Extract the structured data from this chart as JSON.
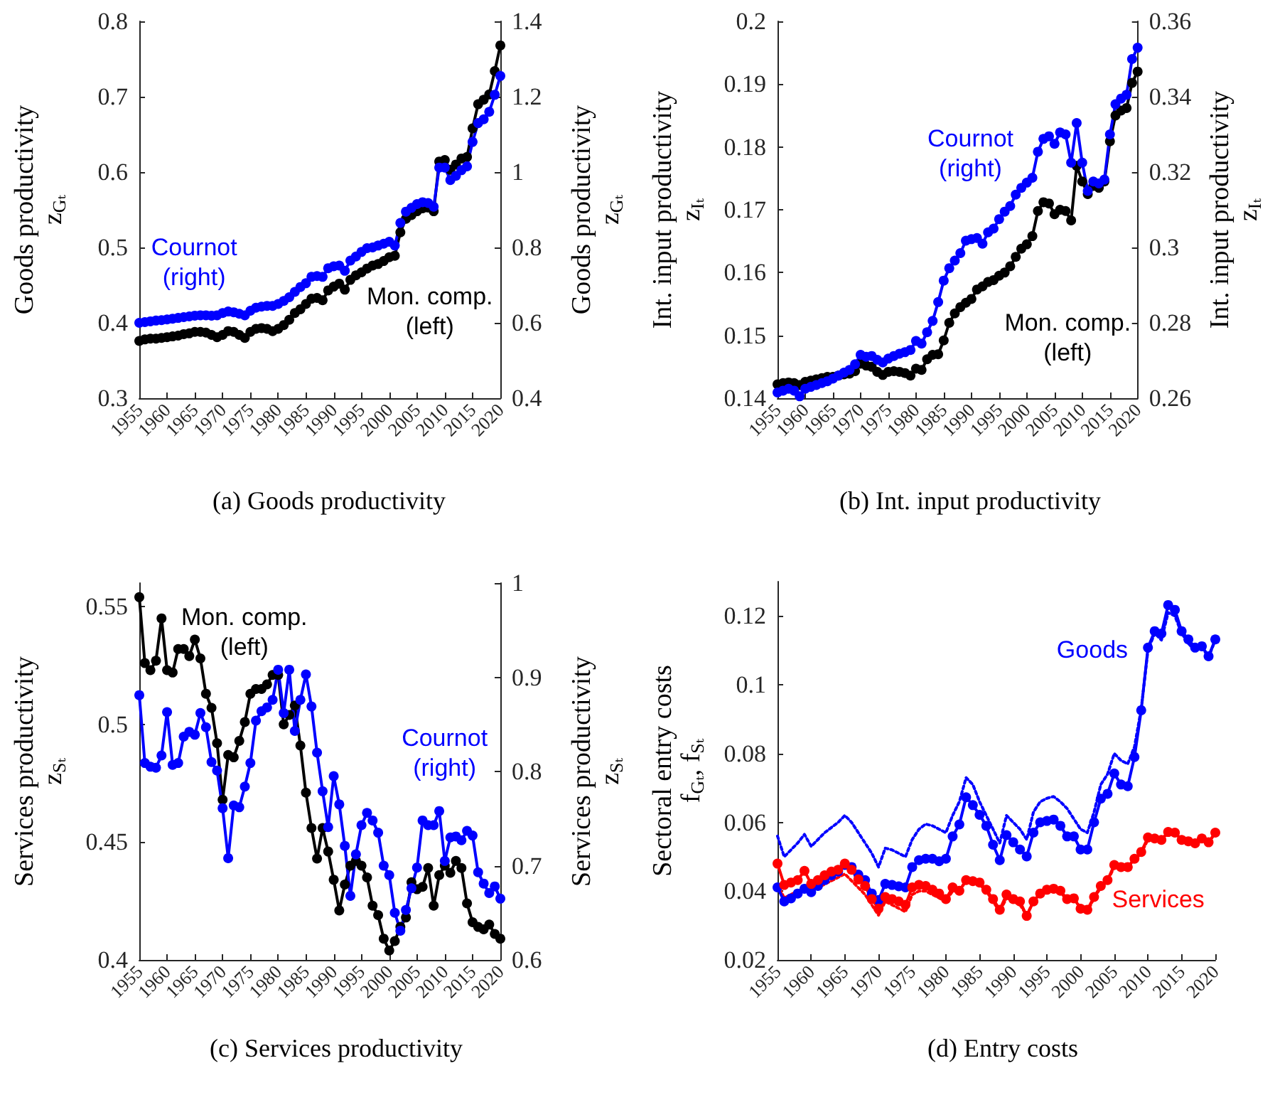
{
  "chart_data": [
    {
      "type": "line",
      "title": "(a) Goods productivity",
      "ylabel": "Goods productivity\nz$_{Gₜ}$",
      "y2label": "Goods productivity\nz$_{Gₜ}$",
      "marker": "circle",
      "line_style": "solid",
      "x": [
        1955,
        1956,
        1957,
        1958,
        1959,
        1960,
        1961,
        1962,
        1963,
        1964,
        1965,
        1966,
        1967,
        1968,
        1969,
        1970,
        1971,
        1972,
        1973,
        1974,
        1975,
        1976,
        1977,
        1978,
        1979,
        1980,
        1981,
        1982,
        1983,
        1984,
        1985,
        1986,
        1987,
        1988,
        1989,
        1990,
        1991,
        1992,
        1993,
        1994,
        1995,
        1996,
        1997,
        1998,
        1999,
        2000,
        2001,
        2002,
        2003,
        2004,
        2005,
        2006,
        2007,
        2008,
        2009,
        2010,
        2011,
        2012,
        2013,
        2014,
        2015,
        2016,
        2017,
        2018,
        2019,
        2020
      ],
      "xlim": [
        1955,
        2020
      ],
      "xticks": [
        1955,
        1960,
        1965,
        1970,
        1975,
        1980,
        1985,
        1990,
        1995,
        2000,
        2005,
        2010,
        2015,
        2020
      ],
      "ylim": [
        0.3,
        0.8
      ],
      "yticks": [
        0.3,
        0.4,
        0.5,
        0.6,
        0.7,
        0.8
      ],
      "y2lim": [
        0.4,
        1.4
      ],
      "y2ticks": [
        0.4,
        0.6,
        0.8,
        1,
        1.2,
        1.4
      ],
      "series": [
        {
          "name": "Mon. comp.\n(left)",
          "color": "#000000",
          "values": [
            0.376,
            0.378,
            0.379,
            0.379,
            0.38,
            0.381,
            0.382,
            0.383,
            0.385,
            0.386,
            0.388,
            0.388,
            0.387,
            0.384,
            0.381,
            0.384,
            0.389,
            0.388,
            0.384,
            0.38,
            0.388,
            0.392,
            0.393,
            0.392,
            0.389,
            0.392,
            0.397,
            0.404,
            0.413,
            0.418,
            0.425,
            0.432,
            0.433,
            0.43,
            0.443,
            0.448,
            0.452,
            0.444,
            0.457,
            0.463,
            0.467,
            0.472,
            0.476,
            0.478,
            0.482,
            0.487,
            0.489,
            0.52,
            0.538,
            0.543,
            0.548,
            0.552,
            0.553,
            0.548,
            0.614,
            0.616,
            0.603,
            0.61,
            0.618,
            0.62,
            0.658,
            0.69,
            0.696,
            0.703,
            0.734,
            0.768
          ]
        },
        {
          "name": "Cournot\n(right)",
          "color": "#0000ff",
          "axis": "y2",
          "values": [
            0.6,
            0.602,
            0.604,
            0.606,
            0.607,
            0.609,
            0.611,
            0.613,
            0.615,
            0.617,
            0.619,
            0.62,
            0.62,
            0.619,
            0.62,
            0.626,
            0.63,
            0.628,
            0.624,
            0.62,
            0.632,
            0.64,
            0.643,
            0.645,
            0.645,
            0.65,
            0.658,
            0.668,
            0.682,
            0.695,
            0.705,
            0.722,
            0.724,
            0.722,
            0.745,
            0.75,
            0.752,
            0.738,
            0.765,
            0.776,
            0.788,
            0.798,
            0.8,
            0.805,
            0.81,
            0.815,
            0.805,
            0.865,
            0.895,
            0.905,
            0.915,
            0.92,
            0.918,
            0.908,
            1.012,
            1.012,
            0.979,
            0.99,
            1.005,
            1.015,
            1.08,
            1.13,
            1.14,
            1.16,
            1.205,
            1.255
          ]
        }
      ]
    },
    {
      "type": "line",
      "title": "(b) Int. input productivity",
      "ylabel": "Int. input productivity\nz$_{Iₜ}$",
      "y2label": "Int. input productivity\nz$_{Iₜ}$",
      "marker": "circle",
      "line_style": "solid",
      "x": [
        1955,
        1956,
        1957,
        1958,
        1959,
        1960,
        1961,
        1962,
        1963,
        1964,
        1965,
        1966,
        1967,
        1968,
        1969,
        1970,
        1971,
        1972,
        1973,
        1974,
        1975,
        1976,
        1977,
        1978,
        1979,
        1980,
        1981,
        1982,
        1983,
        1984,
        1985,
        1986,
        1987,
        1988,
        1989,
        1990,
        1991,
        1992,
        1993,
        1994,
        1995,
        1996,
        1997,
        1998,
        1999,
        2000,
        2001,
        2002,
        2003,
        2004,
        2005,
        2006,
        2007,
        2008,
        2009,
        2010,
        2011,
        2012,
        2013,
        2014,
        2015,
        2016,
        2017,
        2018,
        2019,
        2020
      ],
      "xlim": [
        1955,
        2020
      ],
      "xticks": [
        1955,
        1960,
        1965,
        1970,
        1975,
        1980,
        1985,
        1990,
        1995,
        2000,
        2005,
        2010,
        2015,
        2020
      ],
      "ylim": [
        0.14,
        0.2
      ],
      "yticks": [
        0.14,
        0.15,
        0.16,
        0.17,
        0.18,
        0.19,
        0.2
      ],
      "y2lim": [
        0.26,
        0.36
      ],
      "y2ticks": [
        0.26,
        0.28,
        0.3,
        0.32,
        0.34,
        0.36
      ],
      "series": [
        {
          "name": "Mon. comp.\n(left)",
          "color": "#000000",
          "values": [
            0.1422,
            0.1424,
            0.1425,
            0.1424,
            0.1421,
            0.1426,
            0.1428,
            0.143,
            0.1432,
            0.1434,
            0.1434,
            0.1436,
            0.1438,
            0.1439,
            0.1443,
            0.1455,
            0.1452,
            0.145,
            0.1442,
            0.1437,
            0.1442,
            0.1443,
            0.1442,
            0.144,
            0.1436,
            0.1447,
            0.1445,
            0.1462,
            0.1469,
            0.147,
            0.1492,
            0.152,
            0.1535,
            0.1545,
            0.1552,
            0.1558,
            0.1573,
            0.1578,
            0.1585,
            0.1588,
            0.1595,
            0.16,
            0.161,
            0.1625,
            0.1638,
            0.1645,
            0.1658,
            0.1698,
            0.1712,
            0.171,
            0.1693,
            0.17,
            0.1698,
            0.1683,
            0.177,
            0.1745,
            0.1725,
            0.1738,
            0.1735,
            0.1745,
            0.1809,
            0.185,
            0.1858,
            0.1862,
            0.1902,
            0.192
          ]
        },
        {
          "name": "Cournot\n(right)",
          "color": "#0000ff",
          "axis": "y2",
          "values": [
            0.2615,
            0.262,
            0.2625,
            0.262,
            0.2605,
            0.2625,
            0.263,
            0.2635,
            0.264,
            0.2645,
            0.2652,
            0.266,
            0.2668,
            0.2675,
            0.269,
            0.2715,
            0.271,
            0.2712,
            0.2702,
            0.2695,
            0.2705,
            0.2712,
            0.2718,
            0.2722,
            0.2728,
            0.2752,
            0.2745,
            0.2775,
            0.2805,
            0.2855,
            0.2912,
            0.2945,
            0.2965,
            0.2985,
            0.3018,
            0.3022,
            0.3025,
            0.301,
            0.304,
            0.305,
            0.3075,
            0.3095,
            0.311,
            0.314,
            0.3158,
            0.3172,
            0.3185,
            0.3254,
            0.3288,
            0.3295,
            0.3275,
            0.3305,
            0.33,
            0.3225,
            0.333,
            0.3225,
            0.315,
            0.3175,
            0.317,
            0.318,
            0.33,
            0.338,
            0.3395,
            0.3405,
            0.35,
            0.353
          ]
        }
      ]
    },
    {
      "type": "line",
      "title": "(c) Services productivity",
      "ylabel": "Services productivity\nz$_{Sₜ}$",
      "y2label": "Services productivity\nz$_{Sₜ}$",
      "marker": "circle",
      "line_style": "solid",
      "x": [
        1955,
        1956,
        1957,
        1958,
        1959,
        1960,
        1961,
        1962,
        1963,
        1964,
        1965,
        1966,
        1967,
        1968,
        1969,
        1970,
        1971,
        1972,
        1973,
        1974,
        1975,
        1976,
        1977,
        1978,
        1979,
        1980,
        1981,
        1982,
        1983,
        1984,
        1985,
        1986,
        1987,
        1988,
        1989,
        1990,
        1991,
        1992,
        1993,
        1994,
        1995,
        1996,
        1997,
        1998,
        1999,
        2000,
        2001,
        2002,
        2003,
        2004,
        2005,
        2006,
        2007,
        2008,
        2009,
        2010,
        2011,
        2012,
        2013,
        2014,
        2015,
        2016,
        2017,
        2018,
        2019,
        2020
      ],
      "xlim": [
        1955,
        2020
      ],
      "xticks": [
        1955,
        1960,
        1965,
        1970,
        1975,
        1980,
        1985,
        1990,
        1995,
        2000,
        2005,
        2010,
        2015,
        2020
      ],
      "ylim": [
        0.4,
        0.56
      ],
      "yticks": [
        0.4,
        0.45,
        0.5,
        0.55
      ],
      "y2lim": [
        0.6,
        1
      ],
      "y2ticks": [
        0.6,
        0.7,
        0.8,
        0.9,
        1
      ],
      "series": [
        {
          "name": "Mon. comp.\n(left)",
          "color": "#000000",
          "values": [
            0.554,
            0.526,
            0.523,
            0.527,
            0.545,
            0.523,
            0.522,
            0.532,
            0.532,
            0.529,
            0.536,
            0.528,
            0.513,
            0.507,
            0.492,
            0.468,
            0.487,
            0.486,
            0.493,
            0.501,
            0.513,
            0.515,
            0.515,
            0.517,
            0.521,
            0.521,
            0.5,
            0.504,
            0.508,
            0.491,
            0.471,
            0.456,
            0.443,
            0.456,
            0.446,
            0.434,
            0.421,
            0.432,
            0.44,
            0.442,
            0.44,
            0.435,
            0.423,
            0.419,
            0.409,
            0.404,
            0.408,
            0.414,
            0.418,
            0.433,
            0.43,
            0.431,
            0.439,
            0.423,
            0.436,
            0.44,
            0.437,
            0.442,
            0.439,
            0.424,
            0.416,
            0.414,
            0.413,
            0.415,
            0.411,
            0.409
          ]
        },
        {
          "name": "Cournot\n(right)",
          "color": "#0000ff",
          "axis": "y2",
          "values": [
            0.881,
            0.809,
            0.805,
            0.804,
            0.817,
            0.863,
            0.807,
            0.809,
            0.837,
            0.842,
            0.839,
            0.862,
            0.847,
            0.81,
            0.801,
            0.761,
            0.708,
            0.764,
            0.762,
            0.784,
            0.809,
            0.854,
            0.864,
            0.868,
            0.876,
            0.908,
            0.862,
            0.908,
            0.843,
            0.876,
            0.903,
            0.869,
            0.82,
            0.779,
            0.741,
            0.795,
            0.765,
            0.721,
            0.668,
            0.712,
            0.743,
            0.756,
            0.748,
            0.735,
            0.7,
            0.69,
            0.65,
            0.631,
            0.653,
            0.676,
            0.698,
            0.748,
            0.743,
            0.743,
            0.758,
            0.705,
            0.73,
            0.731,
            0.727,
            0.737,
            0.732,
            0.693,
            0.681,
            0.671,
            0.678,
            0.665
          ]
        }
      ]
    },
    {
      "type": "line",
      "title": "(d) Entry costs",
      "ylabel": "Sectoral entry costs\nf$_{Gₜ}$, f$_{Sₜ}$",
      "marker": "circle",
      "line_style": "solid",
      "x": [
        1955,
        1956,
        1957,
        1958,
        1959,
        1960,
        1961,
        1962,
        1963,
        1964,
        1965,
        1966,
        1967,
        1968,
        1969,
        1970,
        1971,
        1972,
        1973,
        1974,
        1975,
        1976,
        1977,
        1978,
        1979,
        1980,
        1981,
        1982,
        1983,
        1984,
        1985,
        1986,
        1987,
        1988,
        1989,
        1990,
        1991,
        1992,
        1993,
        1994,
        1995,
        1996,
        1997,
        1998,
        1999,
        2000,
        2001,
        2002,
        2003,
        2004,
        2005,
        2006,
        2007,
        2008,
        2009,
        2010,
        2011,
        2012,
        2013,
        2014,
        2015,
        2016,
        2017,
        2018,
        2019,
        2020
      ],
      "xlim": [
        1955,
        2020
      ],
      "xticks": [
        1955,
        1960,
        1965,
        1970,
        1975,
        1980,
        1985,
        1990,
        1995,
        2000,
        2005,
        2010,
        2015,
        2020
      ],
      "ylim": [
        0.02,
        0.13
      ],
      "yticks": [
        0.02,
        0.04,
        0.06,
        0.08,
        0.1,
        0.12
      ],
      "series": [
        {
          "color": "#0000ff",
          "marker": "none",
          "line_style": "dotted",
          "values": [
            0.056,
            0.05,
            0.052,
            0.054,
            0.0565,
            0.053,
            0.055,
            0.057,
            0.0585,
            0.06,
            0.062,
            0.06,
            0.057,
            0.054,
            0.051,
            0.047,
            0.0525,
            0.052,
            0.051,
            0.05,
            0.055,
            0.058,
            0.0595,
            0.059,
            0.058,
            0.057,
            0.062,
            0.066,
            0.073,
            0.071,
            0.066,
            0.062,
            0.058,
            0.054,
            0.062,
            0.06,
            0.058,
            0.055,
            0.063,
            0.066,
            0.067,
            0.0675,
            0.066,
            0.064,
            0.061,
            0.058,
            0.057,
            0.063,
            0.071,
            0.074,
            0.08,
            0.078,
            0.077,
            0.082,
            0.093,
            0.11,
            0.115,
            0.113,
            0.121,
            0.12,
            0.115,
            0.112,
            0.11,
            0.111,
            0.108,
            0.113
          ]
        },
        {
          "color": "#ff0000",
          "marker": "none",
          "line_style": "dotted",
          "values": [
            0.042,
            0.038,
            0.039,
            0.04,
            0.041,
            0.04,
            0.041,
            0.042,
            0.043,
            0.044,
            0.045,
            0.043,
            0.041,
            0.039,
            0.036,
            0.033,
            0.037,
            0.036,
            0.035,
            0.034,
            0.039,
            0.04,
            0.04,
            0.039,
            0.038,
            0.037,
            0.04,
            0.04,
            0.043,
            0.042,
            0.042,
            0.04,
            0.037,
            0.034,
            0.038,
            0.037,
            0.036,
            0.033,
            0.037,
            0.039,
            0.04,
            0.04,
            0.04,
            0.037,
            0.038,
            0.035,
            0.034,
            0.038,
            0.041,
            0.043,
            0.047,
            0.047,
            0.047,
            0.049,
            0.051,
            0.055,
            0.055,
            0.055,
            0.057,
            0.057,
            0.055,
            0.054,
            0.054,
            0.055,
            0.054,
            0.057
          ]
        },
        {
          "name": "Goods",
          "color": "#0000ff",
          "values": [
            0.0411,
            0.037,
            0.0379,
            0.0393,
            0.0407,
            0.0397,
            0.0415,
            0.0432,
            0.0446,
            0.0457,
            0.0476,
            0.047,
            0.0448,
            0.0432,
            0.0393,
            0.0374,
            0.0421,
            0.0418,
            0.0414,
            0.0411,
            0.047,
            0.049,
            0.0494,
            0.0494,
            0.0487,
            0.0494,
            0.0559,
            0.0594,
            0.0673,
            0.065,
            0.0622,
            0.059,
            0.0535,
            0.049,
            0.0563,
            0.0542,
            0.0521,
            0.0501,
            0.057,
            0.06,
            0.0604,
            0.0608,
            0.059,
            0.0559,
            0.0559,
            0.0521,
            0.0521,
            0.06,
            0.0669,
            0.0683,
            0.0742,
            0.071,
            0.0705,
            0.079,
            0.0926,
            0.1108,
            0.1156,
            0.1149,
            0.1232,
            0.1218,
            0.1156,
            0.1132,
            0.1108,
            0.1112,
            0.1083,
            0.1132
          ]
        },
        {
          "name": "Services",
          "color": "#ff0000",
          "values": [
            0.048,
            0.0418,
            0.0425,
            0.0432,
            0.0459,
            0.0421,
            0.0432,
            0.0446,
            0.0457,
            0.0462,
            0.048,
            0.0462,
            0.0434,
            0.0415,
            0.0377,
            0.0349,
            0.0383,
            0.0377,
            0.037,
            0.036,
            0.0411,
            0.0418,
            0.0415,
            0.0404,
            0.0393,
            0.0377,
            0.0411,
            0.0401,
            0.0432,
            0.0429,
            0.0425,
            0.0404,
            0.0377,
            0.0346,
            0.039,
            0.0377,
            0.037,
            0.0328,
            0.037,
            0.0393,
            0.0404,
            0.0407,
            0.0401,
            0.0377,
            0.0379,
            0.0349,
            0.0346,
            0.0383,
            0.0415,
            0.0432,
            0.0476,
            0.047,
            0.047,
            0.0494,
            0.0514,
            0.0556,
            0.0553,
            0.0549,
            0.0572,
            0.057,
            0.0549,
            0.0545,
            0.0539,
            0.0553,
            0.0542,
            0.057
          ]
        }
      ]
    }
  ]
}
